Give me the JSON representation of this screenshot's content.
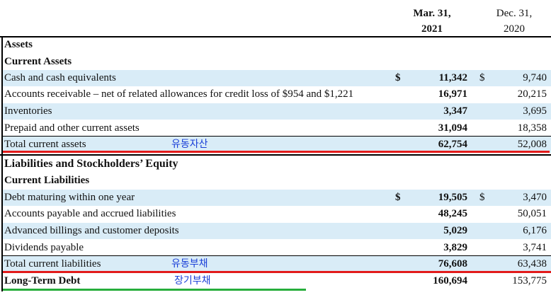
{
  "header": {
    "current_period": "Mar. 31,\n2021",
    "prior_period": "Dec. 31,\n2020"
  },
  "assets": {
    "title": "Assets",
    "subtitle": "Current Assets",
    "rows": [
      {
        "label": "Cash and cash equivalents",
        "dollar": "$",
        "current": "11,342",
        "dollar2": "$",
        "prior": "9,740"
      },
      {
        "label": "Accounts receivable – net of related allowances for credit loss of $954 and $1,221",
        "current": "16,971",
        "prior": "20,215"
      },
      {
        "label": "Inventories",
        "current": "3,347",
        "prior": "3,695"
      },
      {
        "label": "Prepaid and other current assets",
        "current": "31,094",
        "prior": "18,358"
      }
    ],
    "total": {
      "label": "Total current assets",
      "annotation": "유동자산",
      "current": "62,754",
      "prior": "52,008"
    }
  },
  "liabilities": {
    "title": "Liabilities and Stockholders’ Equity",
    "subtitle": "Current Liabilities",
    "rows": [
      {
        "label": "Debt maturing within one year",
        "dollar": "$",
        "current": "19,505",
        "dollar2": "$",
        "prior": "3,470"
      },
      {
        "label": "Accounts payable and accrued liabilities",
        "current": "48,245",
        "prior": "50,051"
      },
      {
        "label": "Advanced billings and customer deposits",
        "current": "5,029",
        "prior": "6,176"
      },
      {
        "label": "Dividends payable",
        "current": "3,829",
        "prior": "3,741"
      }
    ],
    "total": {
      "label": "Total current liabilities",
      "annotation": "유동부채",
      "current": "76,608",
      "prior": "63,438"
    }
  },
  "long_term_debt": {
    "label": "Long-Term Debt",
    "annotation": "장기부채",
    "current": "160,694",
    "prior": "153,775"
  },
  "colors": {
    "row_shade": "#d9ecf7",
    "annotation_text": "#1a3fd8",
    "highlight_red": "#e21b1b",
    "highlight_green": "#27ae3c"
  }
}
